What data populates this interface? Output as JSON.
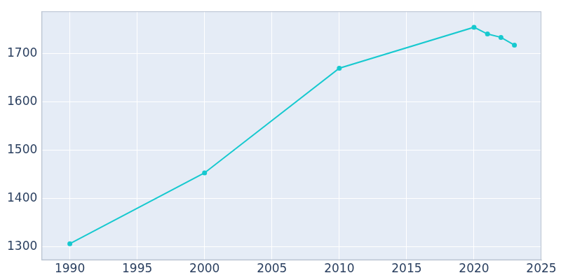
{
  "chart_data": {
    "type": "line",
    "x": [
      1990,
      2000,
      2010,
      2020,
      2021,
      2022,
      2023
    ],
    "values": [
      1306,
      1453,
      1670,
      1755,
      1741,
      1734,
      1718
    ],
    "color": "#17c9cf",
    "marker": "circle",
    "xlim": [
      1987.9,
      2025
    ],
    "xticks": [
      1990,
      1995,
      2000,
      2005,
      2010,
      2015,
      2020,
      2025
    ],
    "ylim": [
      1272,
      1788
    ],
    "yticks": [
      1300,
      1400,
      1500,
      1600,
      1700
    ],
    "grid": true
  }
}
